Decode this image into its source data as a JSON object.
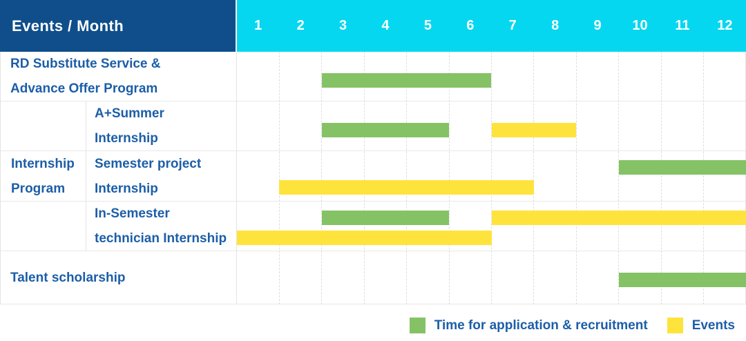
{
  "header": {
    "title": "Events / Month",
    "months": [
      "1",
      "2",
      "3",
      "4",
      "5",
      "6",
      "7",
      "8",
      "9",
      "10",
      "11",
      "12"
    ]
  },
  "colors": {
    "header_bg": "#0f4e8b",
    "months_bg": "#06d7f0",
    "green": "#85c266",
    "yellow": "#ffe33d",
    "label_text": "#1c5ea8",
    "grid_line": "#e0e0e0"
  },
  "legend": {
    "items": [
      {
        "label": "Time for application & recruitment",
        "color_key": "green"
      },
      {
        "label": "Events",
        "color_key": "yellow"
      }
    ]
  },
  "chart_data": {
    "type": "table",
    "subtype": "gantt",
    "title": "Events / Month",
    "x_axis": {
      "unit": "month",
      "range": [
        1,
        12
      ],
      "ticks": [
        "1",
        "2",
        "3",
        "4",
        "5",
        "6",
        "7",
        "8",
        "9",
        "10",
        "11",
        "12"
      ]
    },
    "grid": "on",
    "legend_position": "bottom-right",
    "series": [
      {
        "name": "Time for application & recruitment",
        "color": "#85c266"
      },
      {
        "name": "Events",
        "color": "#ffe33d"
      }
    ],
    "rows": [
      {
        "group": null,
        "label": "RD Substitute Service & Advance Offer Program",
        "label_lines": [
          "RD Substitute Service &",
          "Advance Offer Program"
        ],
        "bars": [
          {
            "series": "Time for application & recruitment",
            "start_month": 3,
            "end_month": 6,
            "lane": "middle"
          }
        ]
      },
      {
        "group": "Internship Program",
        "label": "A+Summer Internship",
        "label_lines": [
          "A+Summer",
          "Internship"
        ],
        "bars": [
          {
            "series": "Time for application & recruitment",
            "start_month": 3,
            "end_month": 5,
            "lane": "middle"
          },
          {
            "series": "Events",
            "start_month": 7,
            "end_month": 8,
            "lane": "middle"
          }
        ]
      },
      {
        "group": "Internship Program",
        "label": "Semester project Internship",
        "label_lines": [
          "Semester project",
          "Internship"
        ],
        "bars": [
          {
            "series": "Time for application & recruitment",
            "start_month": 10,
            "end_month": 12,
            "lane": "top"
          },
          {
            "series": "Events",
            "start_month": 2,
            "end_month": 7,
            "lane": "bottom"
          }
        ]
      },
      {
        "group": "Internship Program",
        "label": "In-Semester technician Internship",
        "label_lines": [
          "In-Semester",
          "technician Internship"
        ],
        "bars": [
          {
            "series": "Time for application & recruitment",
            "start_month": 3,
            "end_month": 5,
            "lane": "top"
          },
          {
            "series": "Events",
            "start_month": 7,
            "end_month": 12,
            "lane": "top"
          },
          {
            "series": "Events",
            "start_month": 1,
            "end_month": 6,
            "lane": "bottom"
          }
        ]
      },
      {
        "group": null,
        "label": "Talent scholarship",
        "label_lines": [
          "Talent scholarship"
        ],
        "bars": [
          {
            "series": "Time for application & recruitment",
            "start_month": 10,
            "end_month": 12,
            "lane": "middle"
          }
        ]
      }
    ],
    "group_label_lines": {
      "Internship Program": [
        "Internship",
        "Program"
      ]
    }
  }
}
